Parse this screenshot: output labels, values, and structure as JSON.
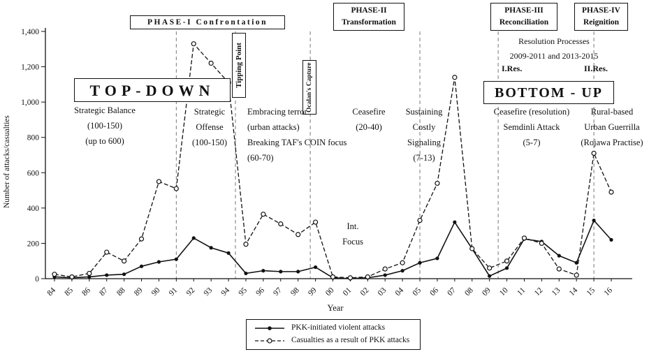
{
  "chart_data": {
    "type": "line",
    "title": "",
    "xlabel": "Year",
    "ylabel": "Number of attacks/casualties",
    "ylim": [
      0,
      1400
    ],
    "grid": false,
    "legend_position": "bottom-center",
    "ytick_values": [
      0,
      200,
      400,
      600,
      800,
      1000,
      1200,
      1400
    ],
    "ytick_labels": [
      "0",
      "200",
      "400",
      "600",
      "800",
      "1,000",
      "1,200",
      "1,400"
    ],
    "categories": [
      "84",
      "85",
      "86",
      "87",
      "88",
      "89",
      "90",
      "91",
      "92",
      "93",
      "94",
      "95",
      "96",
      "97",
      "98",
      "99",
      "00",
      "01",
      "02",
      "03",
      "04",
      "05",
      "06",
      "07",
      "08",
      "09",
      "10",
      "11",
      "12",
      "13",
      "14",
      "15",
      "16"
    ],
    "series": [
      {
        "name": "PKK-initiated violent attacks",
        "line_style": "solid",
        "marker": "filled-circle",
        "values": [
          10,
          5,
          10,
          20,
          25,
          70,
          95,
          110,
          230,
          175,
          145,
          30,
          45,
          40,
          40,
          65,
          5,
          0,
          5,
          20,
          45,
          90,
          115,
          320,
          170,
          15,
          60,
          225,
          210,
          130,
          90,
          330,
          220
        ]
      },
      {
        "name": "Casualties as a result of PKK attacks",
        "line_style": "dashed",
        "marker": "open-circle",
        "values": [
          25,
          10,
          30,
          150,
          100,
          225,
          550,
          510,
          1330,
          1220,
          1110,
          195,
          365,
          310,
          250,
          320,
          10,
          5,
          10,
          55,
          90,
          330,
          540,
          1140,
          170,
          60,
          100,
          230,
          200,
          55,
          20,
          710,
          490
        ]
      }
    ],
    "phase_boundary_indices": [
      7,
      10.4,
      14.7,
      21,
      25.5,
      31
    ]
  },
  "annotations": {
    "phase1": "PHASE-I Confrontation",
    "phase2": "PHASE-II\nTransformation",
    "phase3": "PHASE-III\nReconciliation",
    "phase4": "PHASE-IV\nReignition",
    "top_down": "TOP-DOWN",
    "bottom_up": "BOTTOM - UP",
    "tipping_point": "Tipping Point",
    "ocalans_capture": "Ocalan's Capture",
    "strategic_balance": "Strategic Balance\n(100-150)\n(up to 600)",
    "strategic_offense": "Strategic\nOffense\n(100-150)",
    "embracing_terror": "Embracing terror\n(urban attacks)\nBreaking TAF's COIN focus\n(60-70)",
    "ceasefire_1": "Ceasefire\n(20-40)",
    "int_focus": "Int.\nFocus",
    "sustaining": "Sustaining\nCostly\nSignaling\n(7-13)",
    "resolution_processes": "Resolution Processes\n2009-2011 and 2013-2015",
    "res1": "I.Res.",
    "res2": "II.Res.",
    "ceasefire_2": "Ceasefire (resolution)\nSemdinli Attack\n(5-7)",
    "rural_based": "Rural-based\nUrban Guerrilla\n(Rojawa Practise)"
  },
  "colors": {
    "line": "#111111",
    "boundary": "#777777",
    "background": "#ffffff"
  }
}
